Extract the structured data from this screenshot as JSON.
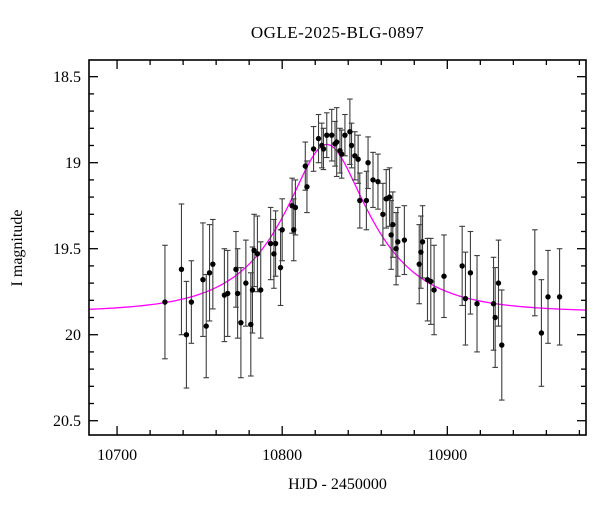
{
  "title": "OGLE-2025-BLG-0897",
  "chart_data": {
    "type": "scatter",
    "title": "OGLE-2025-BLG-0897",
    "xlabel": "HJD - 2450000",
    "ylabel": "I magnitude",
    "grid": false,
    "legend": "none",
    "x_axis": {
      "lim": [
        10683,
        10984
      ],
      "major_ticks": [
        {
          "v": 10700,
          "label": "10700"
        },
        {
          "v": 10800,
          "label": "10800"
        },
        {
          "v": 10900,
          "label": "10900"
        }
      ],
      "minor_step": 20
    },
    "y_axis": {
      "lim": [
        18.4,
        20.58
      ],
      "inverted": true,
      "major_ticks": [
        {
          "v": 18.5,
          "label": "18.5"
        },
        {
          "v": 19.0,
          "label": "19"
        },
        {
          "v": 19.5,
          "label": "19.5"
        },
        {
          "v": 20.0,
          "label": "20"
        },
        {
          "v": 20.5,
          "label": "20.5"
        }
      ],
      "minor_step": 0.1
    },
    "series": [
      {
        "name": "data",
        "kind": "errorbar-scatter",
        "marker_color": "#000000",
        "bar_color": "#3d3d3d",
        "points": [
          [
            10729,
            19.81,
            0.33
          ],
          [
            10739,
            19.62,
            0.38
          ],
          [
            10742,
            20.0,
            0.31
          ],
          [
            10745,
            19.81,
            0.24
          ],
          [
            10752,
            19.68,
            0.33
          ],
          [
            10754,
            19.95,
            0.3
          ],
          [
            10756,
            19.64,
            0.28
          ],
          [
            10758,
            19.59,
            0.26
          ],
          [
            10765,
            19.77,
            0.27
          ],
          [
            10767,
            19.76,
            0.25
          ],
          [
            10772,
            19.62,
            0.22
          ],
          [
            10773,
            19.76,
            0.26
          ],
          [
            10775,
            19.93,
            0.32
          ],
          [
            10778,
            19.7,
            0.25
          ],
          [
            10781,
            19.94,
            0.3
          ],
          [
            10782,
            19.74,
            0.25
          ],
          [
            10783,
            19.51,
            0.21
          ],
          [
            10785,
            19.53,
            0.22
          ],
          [
            10787,
            19.74,
            0.28
          ],
          [
            10793,
            19.47,
            0.21
          ],
          [
            10795,
            19.53,
            0.2
          ],
          [
            10796,
            19.47,
            0.19
          ],
          [
            10799,
            19.61,
            0.22
          ],
          [
            10800,
            19.39,
            0.18
          ],
          [
            10806,
            19.25,
            0.16
          ],
          [
            10807,
            19.39,
            0.18
          ],
          [
            10808,
            19.26,
            0.16
          ],
          [
            10814,
            19.02,
            0.14
          ],
          [
            10815,
            19.14,
            0.15
          ],
          [
            10819,
            18.92,
            0.13
          ],
          [
            10822,
            18.86,
            0.14
          ],
          [
            10824,
            18.9,
            0.13
          ],
          [
            10825,
            18.92,
            0.12
          ],
          [
            10827,
            18.84,
            0.13
          ],
          [
            10830,
            18.84,
            0.15
          ],
          [
            10832,
            18.89,
            0.13
          ],
          [
            10833,
            18.88,
            0.2
          ],
          [
            10835,
            18.93,
            0.13
          ],
          [
            10836,
            18.95,
            0.14
          ],
          [
            10838,
            18.84,
            0.12
          ],
          [
            10841,
            18.82,
            0.19
          ],
          [
            10842,
            18.9,
            0.13
          ],
          [
            10844,
            18.96,
            0.14
          ],
          [
            10846,
            18.98,
            0.14
          ],
          [
            10847,
            19.22,
            0.16
          ],
          [
            10851,
            19.22,
            0.17
          ],
          [
            10852,
            19.0,
            0.15
          ],
          [
            10855,
            19.1,
            0.16
          ],
          [
            10858,
            19.11,
            0.16
          ],
          [
            10861,
            19.3,
            0.18
          ],
          [
            10863,
            19.21,
            0.17
          ],
          [
            10865,
            19.2,
            0.17
          ],
          [
            10866,
            19.42,
            0.2
          ],
          [
            10867,
            19.36,
            0.19
          ],
          [
            10869,
            19.5,
            0.21
          ],
          [
            10870,
            19.46,
            0.2
          ],
          [
            10874,
            19.45,
            0.2
          ],
          [
            10883,
            19.59,
            0.23
          ],
          [
            10884,
            19.52,
            0.21
          ],
          [
            10885,
            19.46,
            0.21
          ],
          [
            10888,
            19.68,
            0.24
          ],
          [
            10890,
            19.69,
            0.25
          ],
          [
            10892,
            19.74,
            0.26
          ],
          [
            10898,
            19.66,
            0.24
          ],
          [
            10909,
            19.6,
            0.23
          ],
          [
            10911,
            19.79,
            0.27
          ],
          [
            10914,
            19.64,
            0.24
          ],
          [
            10918,
            19.82,
            0.28
          ],
          [
            10928,
            19.82,
            0.27
          ],
          [
            10929,
            19.9,
            0.29
          ],
          [
            10931,
            19.7,
            0.25
          ],
          [
            10933,
            20.06,
            0.32
          ],
          [
            10953,
            19.64,
            0.25
          ],
          [
            10957,
            19.99,
            0.31
          ],
          [
            10961,
            19.78,
            0.27
          ],
          [
            10968,
            19.78,
            0.28
          ]
        ]
      },
      {
        "name": "model",
        "kind": "model-line",
        "color": "#ff00ff",
        "model": "paczynski",
        "params": {
          "t0": 10827,
          "tE": 48,
          "u0": 0.435,
          "baseline_mag": 19.87
        }
      }
    ]
  },
  "colors": {
    "background": "#ffffff",
    "frame": "#000000",
    "curve": "#ff00ff",
    "points": "#000000"
  }
}
